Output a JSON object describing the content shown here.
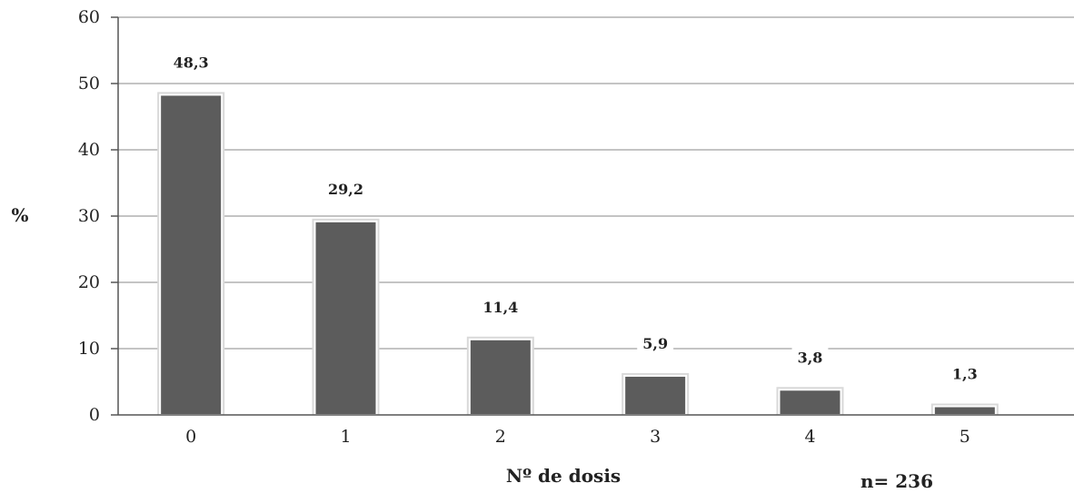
{
  "chart_data": {
    "type": "bar",
    "categories": [
      "0",
      "1",
      "2",
      "3",
      "4",
      "5"
    ],
    "values": [
      48.3,
      29.2,
      11.4,
      5.9,
      3.8,
      1.3
    ],
    "data_labels": [
      "48,3",
      "29,2",
      "11,4",
      "5,9",
      "3,8",
      "1,3"
    ],
    "title": "",
    "xlabel": "Nº de dosis",
    "ylabel": "%",
    "ylim": [
      0,
      60
    ],
    "yticks": [
      "0",
      "10",
      "20",
      "30",
      "40",
      "50",
      "60"
    ],
    "note": "n= 236",
    "grid": true,
    "legend": "none",
    "bar_color": "#5c5c5c",
    "grid_color": "#8a8a8a"
  }
}
